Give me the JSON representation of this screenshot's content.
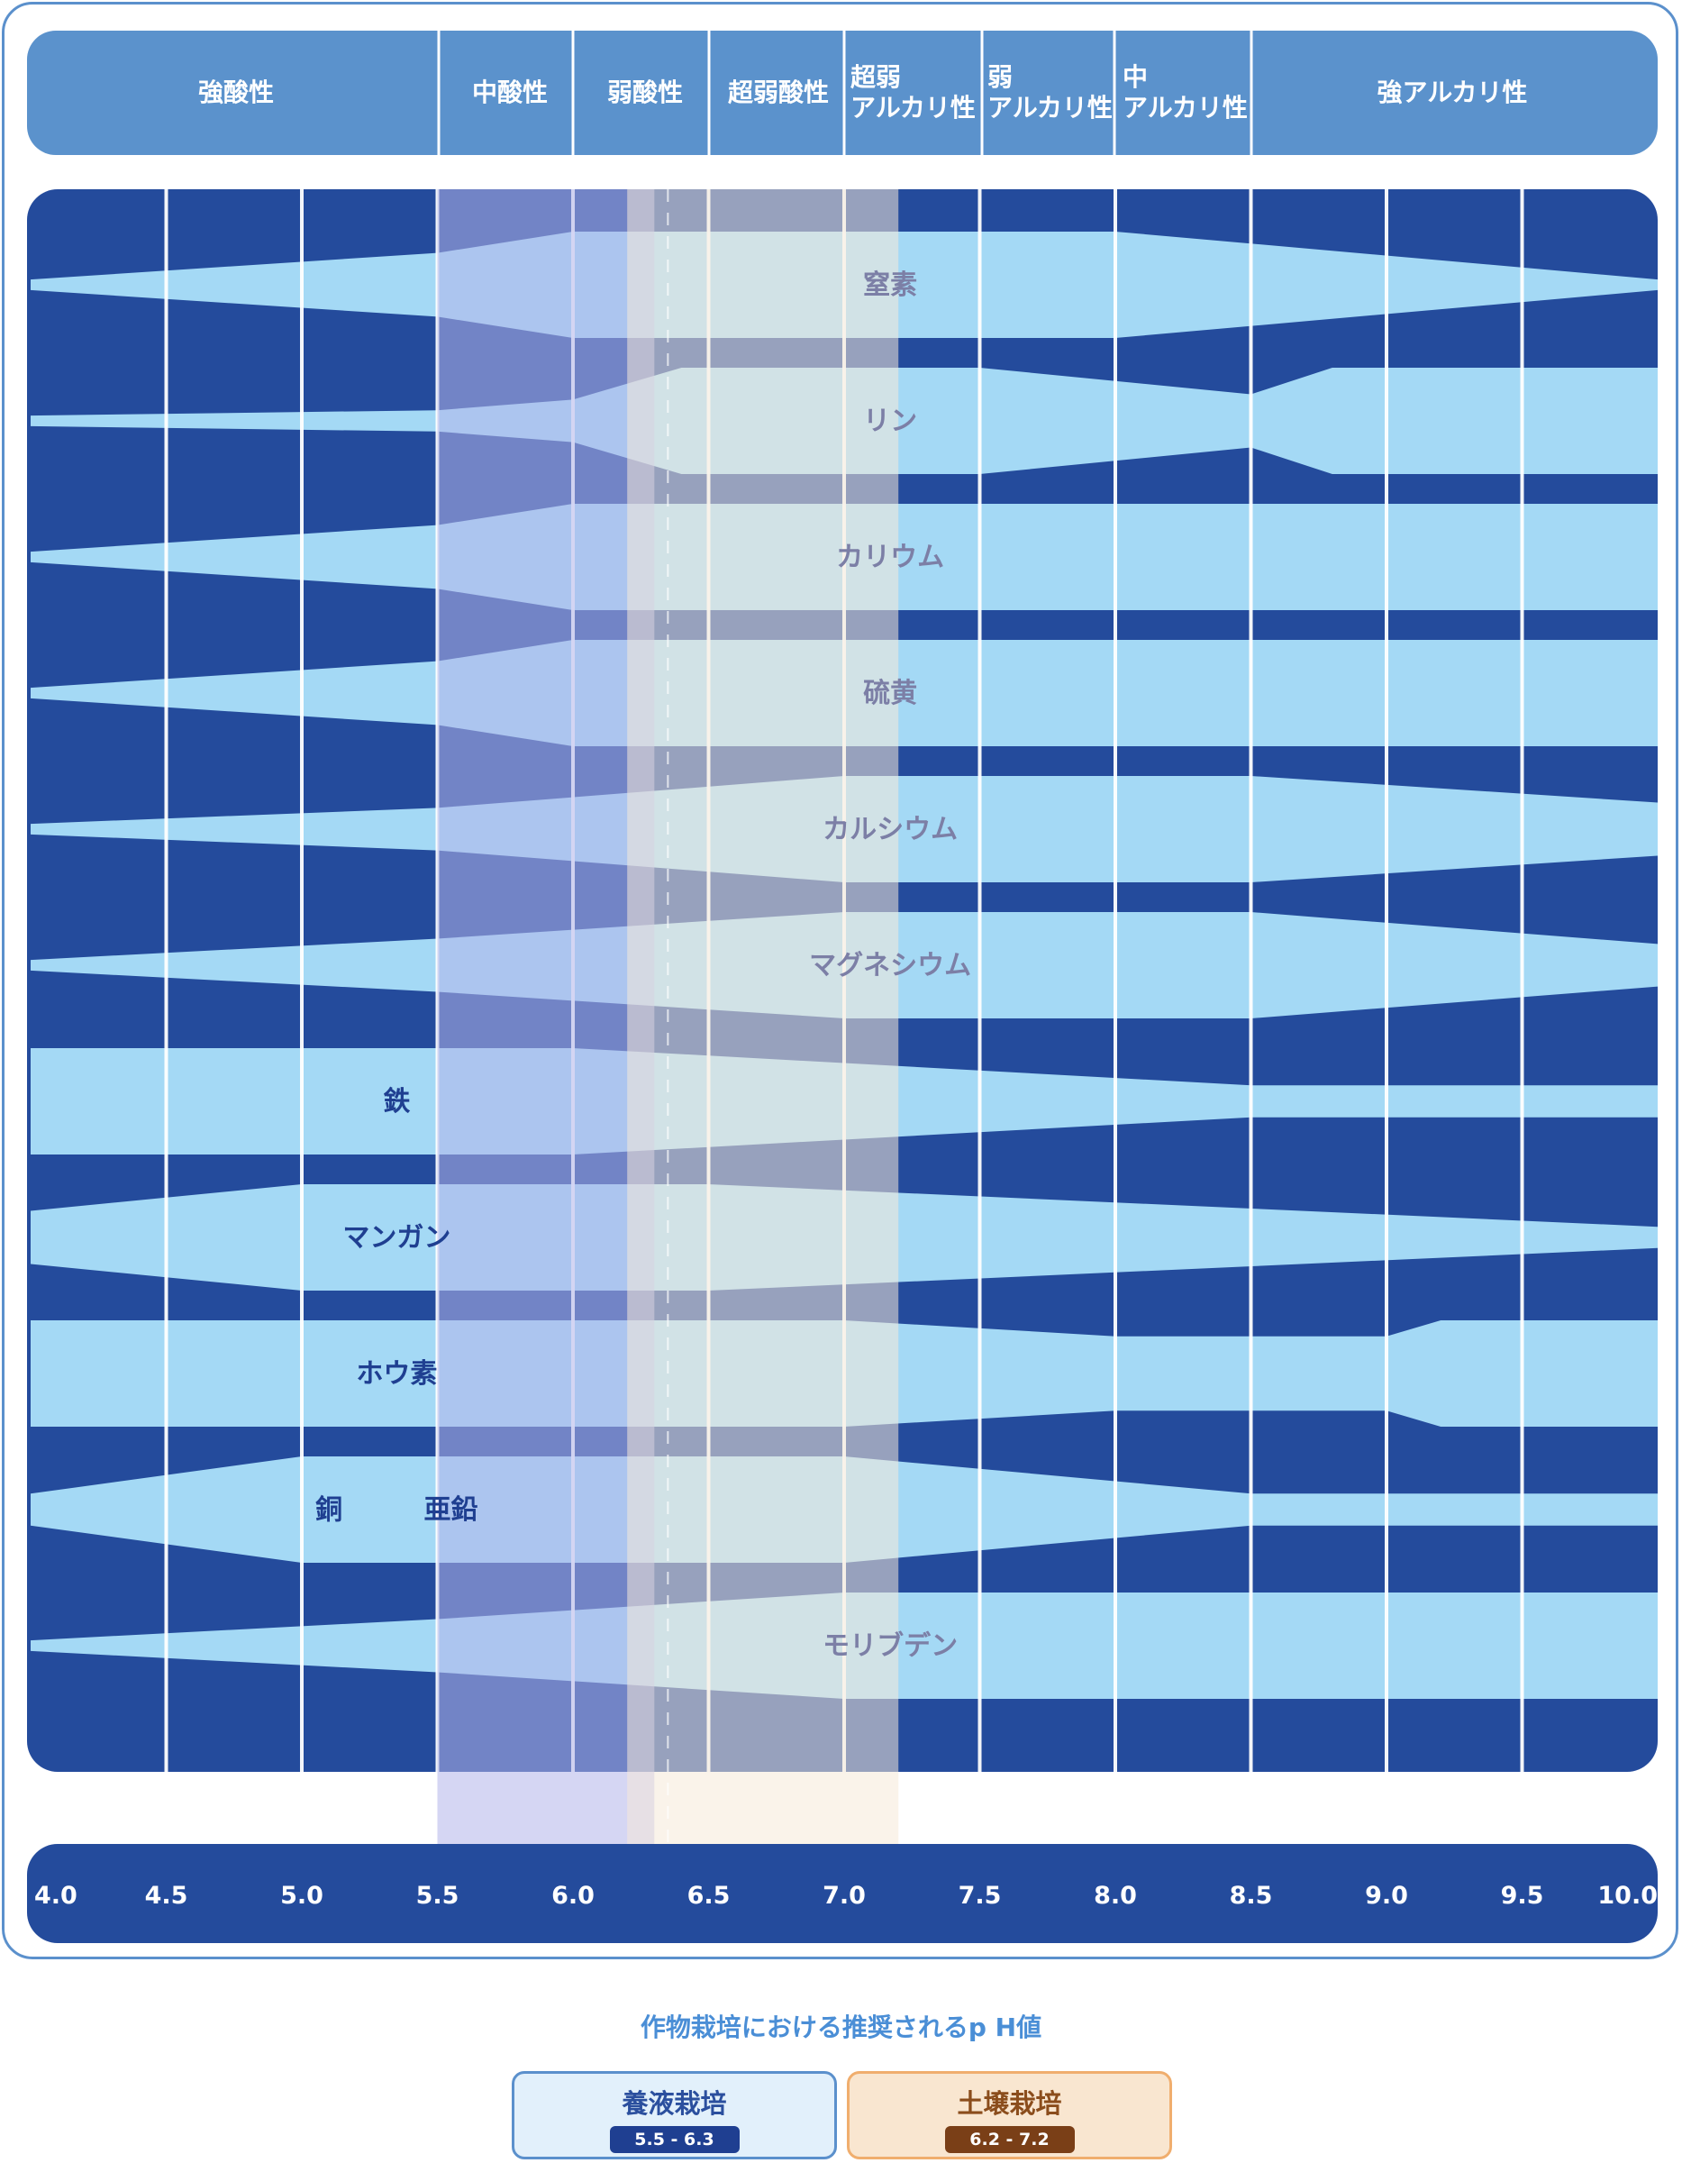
{
  "header_labels": [
    {
      "id": "strong-acid",
      "lines": [
        "強酸性"
      ]
    },
    {
      "id": "mid-acid",
      "lines": [
        "中酸性"
      ]
    },
    {
      "id": "weak-acid",
      "lines": [
        "弱酸性"
      ]
    },
    {
      "id": "very-weak-acid",
      "lines": [
        "超弱酸性"
      ]
    },
    {
      "id": "very-weak-alkali",
      "lines": [
        "超弱",
        "アルカリ性"
      ]
    },
    {
      "id": "weak-alkali",
      "lines": [
        "弱",
        "アルカリ性"
      ]
    },
    {
      "id": "mid-alkali",
      "lines": [
        "中",
        "アルカリ性"
      ]
    },
    {
      "id": "strong-alkali",
      "lines": [
        "強アルカリ性"
      ]
    }
  ],
  "colors": {
    "header": "#5b92cc",
    "plot_bg": "#244b9c",
    "band": "#a4d9f5",
    "axis_bg": "#244b9c",
    "grid": "#ffffff",
    "hydro_overlay": "#b3b5ea",
    "soil_overlay": "#f6ead9",
    "label_dark": "#1f3f91",
    "label_gray": "#7c7fa6",
    "hydro_border": "#5b90cc",
    "hydro_fill": "#e2f0fb",
    "hydro_title": "#2b4f9e",
    "hydro_chip": "#1f3f91",
    "soil_border": "#f0ae6e",
    "soil_fill": "#f9e6d0",
    "soil_title": "#8b4d1c",
    "soil_chip": "#7a3f17"
  },
  "chart_data": {
    "type": "area",
    "xlabel": "",
    "ylabel": "",
    "xlim": [
      4.0,
      10.0
    ],
    "x_ticks": [
      "4.0",
      "4.5",
      "5.0",
      "5.5",
      "6.0",
      "6.5",
      "7.0",
      "7.5",
      "8.0",
      "8.5",
      "9.0",
      "9.5",
      "10.0"
    ],
    "grid": true,
    "legend": "none",
    "series": [
      {
        "name": "窒素",
        "label_ph": 7.17,
        "w": [
          [
            4.0,
            0.1
          ],
          [
            5.5,
            0.6
          ],
          [
            6.0,
            1.0
          ],
          [
            8.0,
            1.0
          ],
          [
            10.0,
            0.1
          ]
        ]
      },
      {
        "name": "リン",
        "label_ph": 7.17,
        "w": [
          [
            4.0,
            0.1
          ],
          [
            5.5,
            0.2
          ],
          [
            6.0,
            0.4
          ],
          [
            6.4,
            1.0
          ],
          [
            7.5,
            1.0
          ],
          [
            8.5,
            0.5
          ],
          [
            8.8,
            1.0
          ],
          [
            10.0,
            1.0
          ]
        ]
      },
      {
        "name": "カリウム",
        "label_ph": 7.17,
        "w": [
          [
            4.0,
            0.1
          ],
          [
            5.5,
            0.6
          ],
          [
            6.0,
            1.0
          ],
          [
            10.0,
            1.0
          ]
        ]
      },
      {
        "name": "硫黄",
        "label_ph": 7.17,
        "w": [
          [
            4.0,
            0.1
          ],
          [
            5.5,
            0.6
          ],
          [
            6.0,
            1.0
          ],
          [
            10.0,
            1.0
          ]
        ]
      },
      {
        "name": "カルシウム",
        "label_ph": 7.17,
        "w": [
          [
            4.0,
            0.1
          ],
          [
            5.5,
            0.4
          ],
          [
            7.0,
            1.0
          ],
          [
            8.5,
            1.0
          ],
          [
            10.0,
            0.5
          ]
        ]
      },
      {
        "name": "マグネシウム",
        "label_ph": 7.17,
        "w": [
          [
            4.0,
            0.1
          ],
          [
            5.5,
            0.5
          ],
          [
            7.0,
            1.0
          ],
          [
            8.5,
            1.0
          ],
          [
            10.0,
            0.4
          ]
        ]
      },
      {
        "name": "鉄",
        "label_ph": 5.35,
        "w": [
          [
            4.0,
            1.0
          ],
          [
            6.0,
            1.0
          ],
          [
            8.5,
            0.3
          ],
          [
            10.0,
            0.3
          ]
        ]
      },
      {
        "name": "マンガン",
        "label_ph": 5.35,
        "w": [
          [
            4.0,
            0.5
          ],
          [
            5.0,
            1.0
          ],
          [
            6.5,
            1.0
          ],
          [
            10.0,
            0.2
          ]
        ]
      },
      {
        "name": "ホウ素",
        "label_ph": 5.35,
        "w": [
          [
            4.0,
            1.0
          ],
          [
            5.0,
            1.0
          ],
          [
            7.0,
            1.0
          ],
          [
            8.0,
            0.7
          ],
          [
            9.0,
            0.7
          ],
          [
            9.2,
            1.0
          ],
          [
            10.0,
            1.0
          ]
        ]
      },
      {
        "name": "銅",
        "label_ph": 5.1,
        "w": [
          [
            4.0,
            0.3
          ],
          [
            5.0,
            1.0
          ],
          [
            7.0,
            1.0
          ],
          [
            8.5,
            0.3
          ],
          [
            10.0,
            0.3
          ]
        ]
      },
      {
        "name": "亜鉛",
        "label_ph": 5.55,
        "w": [
          [
            4.0,
            0.3
          ],
          [
            5.0,
            1.0
          ],
          [
            7.0,
            1.0
          ],
          [
            8.5,
            0.3
          ],
          [
            10.0,
            0.3
          ]
        ]
      },
      {
        "name": "モリブデン",
        "label_ph": 7.17,
        "w": [
          [
            4.0,
            0.1
          ],
          [
            5.5,
            0.5
          ],
          [
            7.0,
            1.0
          ],
          [
            10.0,
            1.0
          ]
        ]
      }
    ],
    "recommended_ranges": [
      {
        "name": "養液栽培",
        "range": [
          5.5,
          6.3
        ],
        "display": "5.5 - 6.3"
      },
      {
        "name": "土壌栽培",
        "range": [
          6.2,
          7.2
        ],
        "display": "6.2 - 7.2"
      }
    ]
  },
  "caption": "作物栽培における推奨されるp H値",
  "legend": {
    "hydro": {
      "title": "養液栽培",
      "range": "5.5 - 6.3"
    },
    "soil": {
      "title": "土壌栽培",
      "range": "6.2 - 7.2"
    }
  }
}
